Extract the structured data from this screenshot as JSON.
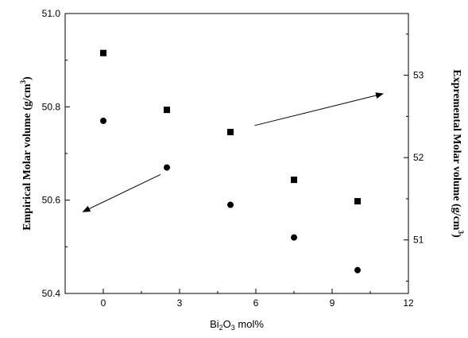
{
  "chart_data": {
    "type": "scatter",
    "x_label": {
      "base": "Bi",
      "sub": "2",
      "mid": "O",
      "sub2": "3",
      "tail": " mol%"
    },
    "y_left_label": {
      "text": "Empirical Molar volume (g/cm",
      "sup": "3",
      "end": ")"
    },
    "y_right_label": {
      "text": "Expremental Molar volume (g/cm",
      "sup": "3",
      "end": ")"
    },
    "xlim": [
      -1.5,
      12
    ],
    "ylim_left": [
      50.4,
      51.0
    ],
    "ylim_right": [
      50.35,
      53.75
    ],
    "x_ticks": [
      0,
      3,
      6,
      9,
      12
    ],
    "x_tick_labels": [
      "0",
      "3",
      "6",
      "9",
      "12"
    ],
    "y_left_ticks": [
      50.4,
      50.6,
      50.8,
      51.0
    ],
    "y_left_tick_labels": [
      "50.4",
      "50.6",
      "50.8",
      "51.0"
    ],
    "y_right_ticks": [
      51,
      52,
      53
    ],
    "y_right_tick_labels": [
      "51",
      "52",
      "53"
    ],
    "grid": false,
    "series": [
      {
        "marker": "circle",
        "axis": "left",
        "x": [
          0,
          2.5,
          5,
          7.5,
          10
        ],
        "y": [
          50.77,
          50.67,
          50.59,
          50.52,
          50.45
        ]
      },
      {
        "marker": "square",
        "axis": "right",
        "x": [
          0,
          2.5,
          5,
          7.5,
          10
        ],
        "y": [
          53.27,
          52.58,
          52.31,
          51.73,
          51.47
        ]
      }
    ],
    "annotations": [
      {
        "type": "arrow",
        "points_to": "left axis",
        "from": [
          2.25,
          50.655
        ],
        "to": [
          -0.8,
          50.575
        ]
      },
      {
        "type": "arrow",
        "points_to": "right axis",
        "from": [
          5.95,
          50.76
        ],
        "to": [
          11.0,
          50.828
        ]
      }
    ]
  }
}
